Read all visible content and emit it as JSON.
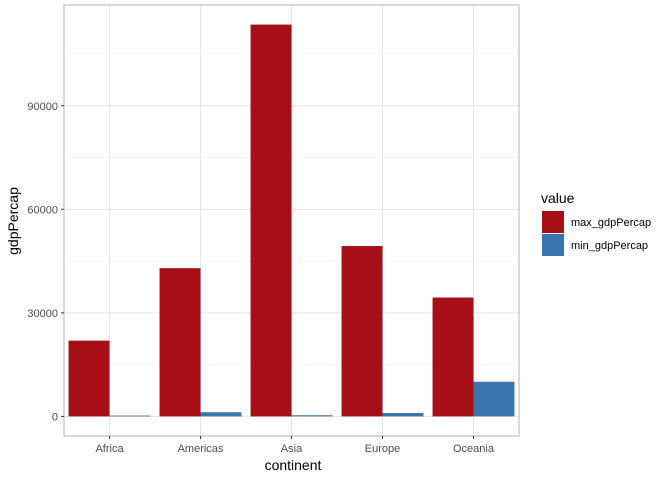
{
  "chart_data": {
    "type": "bar",
    "xlabel": "continent",
    "ylabel": "gdpPercap",
    "categories": [
      "Africa",
      "Americas",
      "Asia",
      "Europe",
      "Oceania"
    ],
    "series": [
      {
        "name": "max_gdpPercap",
        "color": "#A50F15",
        "values": [
          21951,
          42952,
          113523,
          49357,
          34435
        ]
      },
      {
        "name": "min_gdpPercap",
        "color": "#3B74AE",
        "values": [
          241,
          1202,
          331,
          974,
          10040
        ]
      }
    ],
    "yticks": [
      0,
      30000,
      60000,
      90000
    ],
    "ylim": [
      -5680,
      119200
    ],
    "grid": true,
    "legend": {
      "title": "value",
      "position": "right"
    },
    "theme": {
      "panel_border": "#b3b3b3",
      "grid_major": "#e5e5e5",
      "grid_minor": "#f2f2f2"
    }
  }
}
